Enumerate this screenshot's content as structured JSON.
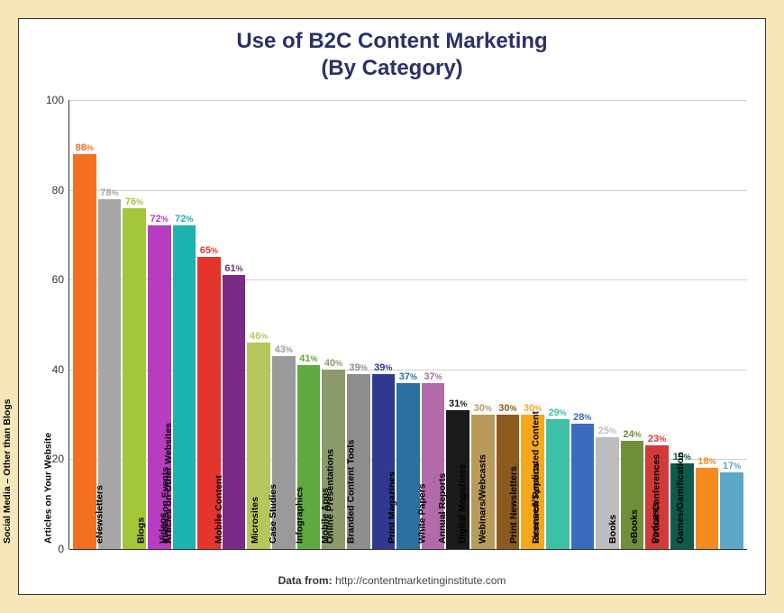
{
  "chart": {
    "type": "bar",
    "title_line1": "Use of B2C Content Marketing",
    "title_line2": "(By Category)",
    "title_color": "#2a3168",
    "title_fontsize": 24,
    "background_color": "#ffffff",
    "page_background": "#f7e6b8",
    "ylim": [
      0,
      100
    ],
    "yticks": [
      0,
      20,
      40,
      60,
      80,
      100
    ],
    "grid_color": "#d0d0d0",
    "axis_color": "#333333",
    "label_fontsize": 11,
    "value_fontsize": 11,
    "credit_lead": "Data from:",
    "credit_url": "http://contentmarketinginstitute.com",
    "series": [
      {
        "label": "Social Media – Other than Blogs",
        "value": 88,
        "color": "#f36f21"
      },
      {
        "label": "Articles on Your Website",
        "value": 78,
        "color": "#a6a6a6"
      },
      {
        "label": "eNewsletters",
        "value": 76,
        "color": "#a4c639"
      },
      {
        "label": "Blogs",
        "value": 72,
        "color": "#b83cc1"
      },
      {
        "label": "Videos",
        "value": 72,
        "color": "#1bb2b0"
      },
      {
        "label": "In-person Events",
        "value": 65,
        "color": "#e5342c"
      },
      {
        "label": "Articles on Other Websites",
        "value": 61,
        "color": "#7c2a88"
      },
      {
        "label": "Mobile Content",
        "value": 46,
        "color": "#b7c65a"
      },
      {
        "label": "Microsites",
        "value": 43,
        "color": "#9a9a9a"
      },
      {
        "label": "Case Studies",
        "value": 41,
        "color": "#5fa93e"
      },
      {
        "label": "Infographics",
        "value": 40,
        "color": "#8a9a6b"
      },
      {
        "label": "Mobile Apps",
        "value": 39,
        "color": "#8d8d8d"
      },
      {
        "label": "Online Presentations",
        "value": 39,
        "color": "#2f3a8f"
      },
      {
        "label": "Branded Content Tools",
        "value": 37,
        "color": "#2c70a0"
      },
      {
        "label": "Print Magazines",
        "value": 37,
        "color": "#b26aa9"
      },
      {
        "label": "White Papers",
        "value": 31,
        "color": "#1a1a1a"
      },
      {
        "label": "Annual Reports",
        "value": 30,
        "color": "#b89a5a"
      },
      {
        "label": "Digital Magazines",
        "value": 30,
        "color": "#8a5a1f"
      },
      {
        "label": "Webinars/Webcasts",
        "value": 30,
        "color": "#f6a81c"
      },
      {
        "label": "Print Newsletters",
        "value": 29,
        "color": "#3fbfa6"
      },
      {
        "label": "Research Reports",
        "value": 28,
        "color": "#3a6bbf"
      },
      {
        "label": "Licensed/Syndicated Content",
        "value": 25,
        "color": "#bdbdbd"
      },
      {
        "label": "Books",
        "value": 24,
        "color": "#6f8f3a"
      },
      {
        "label": "eBooks",
        "value": 23,
        "color": "#d23a3a"
      },
      {
        "label": "Podcasts",
        "value": 19,
        "color": "#0f5a4a"
      },
      {
        "label": "Virtual Conferences",
        "value": 18,
        "color": "#f58a1f"
      },
      {
        "label": "Games/Gamification",
        "value": 17,
        "color": "#5aa7c7"
      }
    ]
  }
}
